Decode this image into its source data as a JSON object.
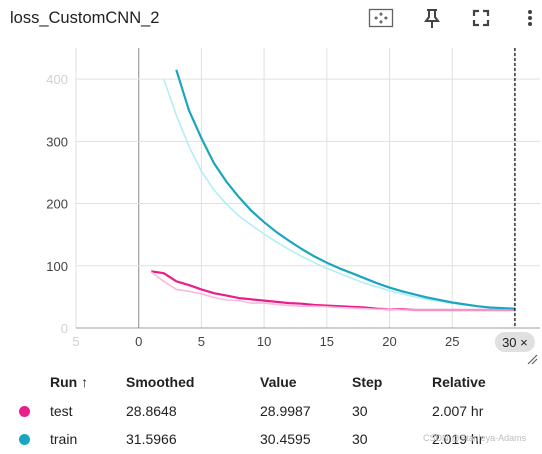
{
  "card": {
    "title": "loss_CustomCNN_2"
  },
  "toolbar": [
    "fit-to-data-icon",
    "pin-icon",
    "fullscreen-icon",
    "more-vert-icon"
  ],
  "colors": {
    "test": "#e91e8c",
    "test_raw": "#f8bbd9",
    "train": "#1aa6bf",
    "train_raw": "#b3eef6",
    "crosshair": "#000000",
    "grid": "#e0e0e0"
  },
  "chart_data": {
    "type": "line",
    "xlim": [
      -5,
      32
    ],
    "ylim": [
      0,
      450
    ],
    "x_ticks": [
      "5",
      "0",
      "5",
      "10",
      "15",
      "20",
      "25",
      "30"
    ],
    "x_tick_values": [
      -5,
      0,
      5,
      10,
      15,
      20,
      25,
      30
    ],
    "y_ticks": [
      "0",
      "100",
      "200",
      "300",
      "400"
    ],
    "y_tick_values": [
      0,
      100,
      200,
      300,
      400
    ],
    "grid": true,
    "cursor_label": "30 ×",
    "cursor_x": 30,
    "series": [
      {
        "name": "test",
        "smoothed": true,
        "color_key": "test",
        "x": [
          1,
          2,
          3,
          4,
          5,
          6,
          7,
          8,
          9,
          10,
          11,
          12,
          13,
          14,
          15,
          16,
          17,
          18,
          19,
          20,
          21,
          22,
          23,
          24,
          25,
          26,
          27,
          28,
          29,
          30
        ],
        "y": [
          91,
          88,
          75,
          69,
          62,
          56,
          52,
          48,
          46,
          44,
          42,
          40,
          39,
          37,
          36,
          35,
          34,
          33,
          31,
          30,
          30,
          29,
          29,
          29,
          29,
          29,
          29,
          29,
          29,
          29
        ]
      },
      {
        "name": "test",
        "smoothed": false,
        "color_key": "test_raw",
        "x": [
          1,
          2,
          3,
          4,
          5,
          6,
          7,
          8,
          9,
          10,
          11,
          12,
          13,
          14,
          15,
          16,
          17,
          18,
          19,
          20,
          21,
          22,
          23,
          24,
          25,
          26,
          27,
          28,
          29,
          30
        ],
        "y": [
          90,
          75,
          62,
          59,
          55,
          49,
          45,
          44,
          40,
          40,
          38,
          36,
          35,
          35,
          34,
          33,
          32,
          31,
          30,
          30,
          29,
          29,
          29,
          29,
          29,
          29,
          29,
          29,
          29,
          29
        ]
      },
      {
        "name": "train",
        "smoothed": false,
        "color_key": "train_raw",
        "x": [
          2,
          3,
          4,
          5,
          6,
          7,
          8,
          9,
          10,
          11,
          12,
          13,
          14,
          15,
          16,
          17,
          18,
          19,
          20,
          21,
          22,
          23,
          24,
          25,
          26,
          27,
          28,
          29,
          30
        ],
        "y": [
          400,
          342,
          292,
          252,
          222,
          199,
          180,
          165,
          151,
          138,
          126,
          115,
          105,
          96,
          88,
          80,
          72,
          66,
          60,
          55,
          50,
          46,
          43,
          40,
          37,
          35,
          33,
          32,
          30
        ]
      },
      {
        "name": "train",
        "smoothed": true,
        "color_key": "train",
        "x": [
          3,
          4,
          5,
          6,
          7,
          8,
          9,
          10,
          11,
          12,
          13,
          14,
          15,
          16,
          17,
          18,
          19,
          20,
          21,
          22,
          23,
          24,
          25,
          26,
          27,
          28,
          29,
          30
        ],
        "y": [
          415,
          350,
          305,
          265,
          235,
          210,
          188,
          170,
          154,
          140,
          127,
          115,
          105,
          96,
          88,
          80,
          72,
          65,
          59,
          54,
          49,
          45,
          41,
          38,
          35,
          33,
          32,
          31
        ]
      }
    ]
  },
  "table": {
    "headers": {
      "run": "Run ↑",
      "smoothed": "Smoothed",
      "value": "Value",
      "step": "Step",
      "relative": "Relative"
    },
    "rows": [
      {
        "run": "test",
        "smoothed": "28.8648",
        "value": "28.9987",
        "step": "30",
        "relative": "2.007 hr",
        "color": "#e91e8c"
      },
      {
        "run": "train",
        "smoothed": "31.5966",
        "value": "30.4595",
        "step": "30",
        "relative": "2.019 hr",
        "color": "#1aa6bf"
      }
    ]
  },
  "watermark": "CSDN @Stanleya-Adams"
}
